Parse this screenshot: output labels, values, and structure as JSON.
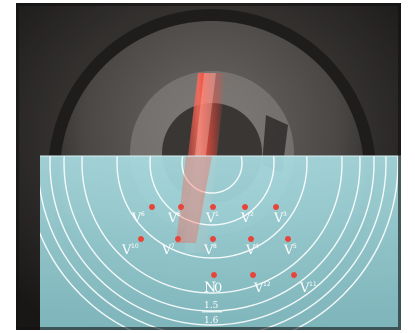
{
  "scene": {
    "description_label": "",
    "colors": {
      "background": "#2a2725",
      "lens": "#5c5956",
      "chart_overlay": "#9fd6dc",
      "beam": "#ff4a3c",
      "point": "#e8453a",
      "rings": "#ffffff"
    }
  },
  "points": [
    {
      "name": "point-1",
      "label": "V",
      "sup": "6"
    },
    {
      "name": "point-2",
      "label": "V",
      "sup": "6"
    },
    {
      "name": "point-3",
      "label": "V",
      "sup": "1"
    },
    {
      "name": "point-4",
      "label": "V",
      "sup": "2"
    },
    {
      "name": "point-5",
      "label": "V",
      "sup": "3"
    },
    {
      "name": "point-6",
      "label": "V",
      "sup": "10"
    },
    {
      "name": "point-7",
      "label": "V",
      "sup": "7"
    },
    {
      "name": "point-8",
      "label": "V",
      "sup": "8"
    },
    {
      "name": "point-9",
      "label": "V",
      "sup": "4"
    },
    {
      "name": "point-10",
      "label": "V",
      "sup": "5"
    },
    {
      "name": "point-11",
      "label": "N",
      "sup": "0"
    },
    {
      "name": "point-12",
      "label": "V",
      "sup": "12"
    },
    {
      "name": "point-13",
      "label": "V",
      "sup": "11"
    }
  ],
  "scale": {
    "mark_1": "1.5",
    "mark_2": "1.6"
  }
}
